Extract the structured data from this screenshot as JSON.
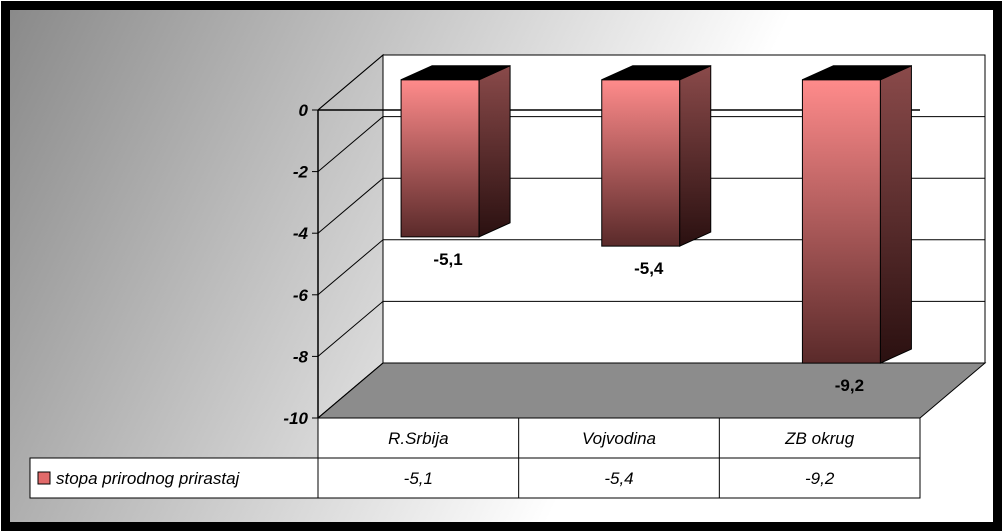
{
  "chart_data": {
    "type": "bar",
    "title": "",
    "xlabel": "",
    "ylabel": "",
    "categories": [
      "R.Srbija",
      "Vojvodina",
      "ZB okrug"
    ],
    "series": [
      {
        "name": "stopa prirodnog prirastaj",
        "values": [
          -5.1,
          -5.4,
          -9.2
        ]
      }
    ],
    "data_labels": [
      "-5,1",
      "-5,4",
      "-9,2"
    ],
    "table_values": [
      "-5,1",
      "-5,4",
      "-9,2"
    ],
    "ylim": [
      -10,
      0
    ],
    "yticks": [
      0,
      -2,
      -4,
      -6,
      -8,
      -10
    ],
    "ytick_labels": [
      "0",
      "-2",
      "-4",
      "-6",
      "-8",
      "-10"
    ],
    "grid": true,
    "legend": "data-table-left",
    "colors": {
      "bar_front_top": "#ff8b8b",
      "bar_front_bottom": "#5a2a2a",
      "bar_side_top": "#8a4a4a",
      "bar_side_bottom": "#2a1010",
      "bar_top": "#000000",
      "floor": "#8c8c8c",
      "background_left": "#8a8a8a",
      "background_right": "#ffffff",
      "legend_swatch": "#e26a6a"
    }
  }
}
